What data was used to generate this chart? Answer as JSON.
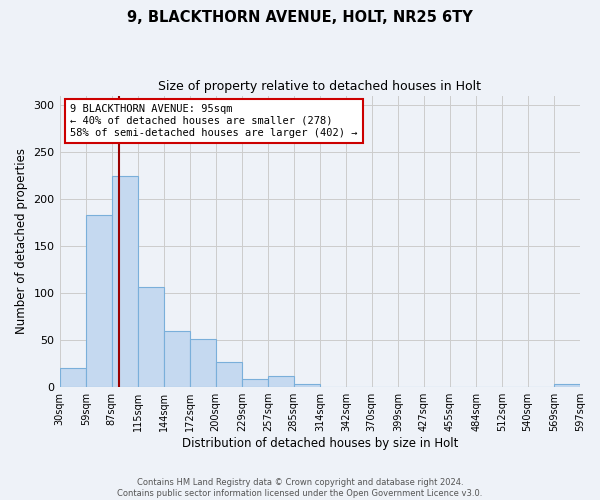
{
  "title": "9, BLACKTHORN AVENUE, HOLT, NR25 6TY",
  "subtitle": "Size of property relative to detached houses in Holt",
  "xlabel": "Distribution of detached houses by size in Holt",
  "ylabel": "Number of detached properties",
  "bar_values": [
    20,
    183,
    224,
    106,
    60,
    51,
    27,
    9,
    12,
    3,
    0,
    0,
    0,
    0,
    0,
    0,
    0,
    0,
    0,
    3
  ],
  "bin_edges": [
    30,
    59,
    87,
    115,
    144,
    172,
    200,
    229,
    257,
    285,
    314,
    342,
    370,
    399,
    427,
    455,
    484,
    512,
    540,
    569,
    597
  ],
  "tick_labels": [
    "30sqm",
    "59sqm",
    "87sqm",
    "115sqm",
    "144sqm",
    "172sqm",
    "200sqm",
    "229sqm",
    "257sqm",
    "285sqm",
    "314sqm",
    "342sqm",
    "370sqm",
    "399sqm",
    "427sqm",
    "455sqm",
    "484sqm",
    "512sqm",
    "540sqm",
    "569sqm",
    "597sqm"
  ],
  "bar_color": "#c5d9f0",
  "bar_edge_color": "#7aafda",
  "property_size": 95,
  "vline_color": "#990000",
  "annotation_text": "9 BLACKTHORN AVENUE: 95sqm\n← 40% of detached houses are smaller (278)\n58% of semi-detached houses are larger (402) →",
  "annotation_box_color": "white",
  "annotation_box_edge_color": "#cc0000",
  "ylim": [
    0,
    310
  ],
  "yticks": [
    0,
    50,
    100,
    150,
    200,
    250,
    300
  ],
  "footer_text": "Contains HM Land Registry data © Crown copyright and database right 2024.\nContains public sector information licensed under the Open Government Licence v3.0.",
  "bg_color": "#eef2f8"
}
